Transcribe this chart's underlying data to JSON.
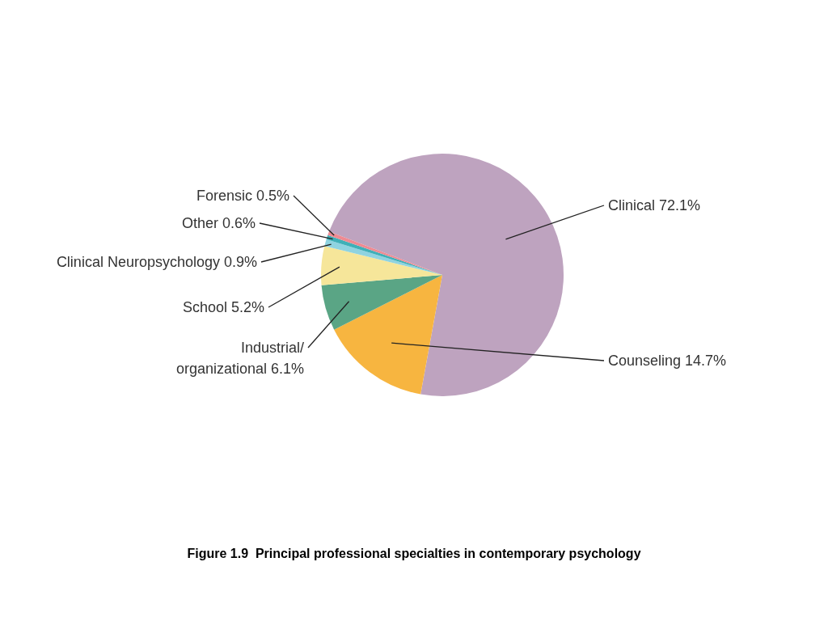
{
  "chart_data": {
    "type": "pie",
    "title": "Figure 1.9  Principal professional specialties in contemporary psychology",
    "categories": [
      "Clinical",
      "Counseling",
      "Industrial/organizational",
      "School",
      "Clinical Neuropsychology",
      "Other",
      "Forensic"
    ],
    "values": [
      72.1,
      14.7,
      6.1,
      5.2,
      0.9,
      0.6,
      0.5
    ],
    "value_labels": [
      "72.1%",
      "14.7%",
      "6.1%",
      "5.2%",
      "0.9%",
      "0.6%",
      "0.5%"
    ],
    "colors": [
      "#bea3bf",
      "#f7b540",
      "#5aa585",
      "#f6e69a",
      "#8fd3e0",
      "#3fb0b8",
      "#ee8a92"
    ]
  }
}
